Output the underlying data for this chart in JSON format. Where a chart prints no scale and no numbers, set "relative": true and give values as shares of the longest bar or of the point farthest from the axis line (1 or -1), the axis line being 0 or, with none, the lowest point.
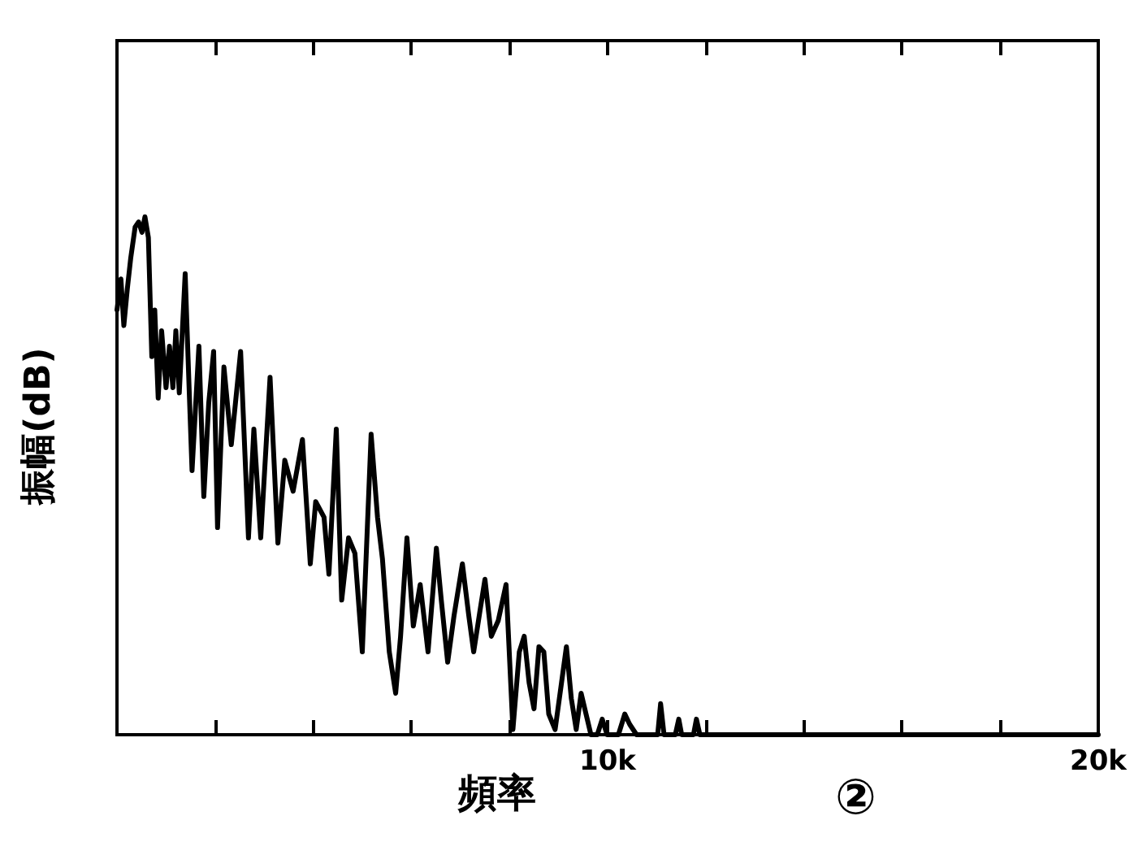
{
  "chart_data": {
    "type": "line",
    "xlabel": "頻率",
    "ylabel": "振幅(dB)",
    "annotations": [
      "②"
    ],
    "relative": true,
    "color": "#000000",
    "tick_labels": "x",
    "xlim": [
      0,
      20000
    ],
    "xticks": [
      {
        "value": 2000,
        "label": null
      },
      {
        "value": 4000,
        "label": null
      },
      {
        "value": 6000,
        "label": null
      },
      {
        "value": 8000,
        "label": null
      },
      {
        "value": 10000,
        "label": "10k"
      },
      {
        "value": 12000,
        "label": null
      },
      {
        "value": 14000,
        "label": null
      },
      {
        "value": 16000,
        "label": null
      },
      {
        "value": 18000,
        "label": null
      },
      {
        "value": 20000,
        "label": "20k"
      }
    ],
    "x": [
      0,
      80,
      140,
      210,
      280,
      370,
      440,
      510,
      570,
      640,
      710,
      770,
      840,
      910,
      1000,
      1070,
      1140,
      1200,
      1270,
      1390,
      1470,
      1530,
      1670,
      1770,
      1870,
      1970,
      2050,
      2180,
      2330,
      2520,
      2680,
      2790,
      2930,
      3120,
      3280,
      3420,
      3590,
      3780,
      3940,
      4050,
      4220,
      4320,
      4470,
      4580,
      4720,
      4850,
      5000,
      5180,
      5310,
      5410,
      5550,
      5680,
      5780,
      5910,
      6040,
      6180,
      6340,
      6510,
      6610,
      6740,
      6870,
      7040,
      7170,
      7270,
      7400,
      7500,
      7630,
      7770,
      7930,
      8070,
      8200,
      8300,
      8400,
      8500,
      8600,
      8700,
      8800,
      8930,
      9060,
      9160,
      9260,
      9360,
      9460,
      9560,
      9660,
      9790,
      9890,
      9990,
      10220,
      10350,
      10450,
      10590,
      11020,
      11080,
      11150,
      11380,
      11450,
      11510,
      11750,
      11810,
      11880,
      20000
    ],
    "values": [
      0.82,
      0.88,
      0.79,
      0.86,
      0.92,
      0.98,
      0.99,
      0.97,
      1.0,
      0.96,
      0.73,
      0.82,
      0.65,
      0.78,
      0.67,
      0.75,
      0.67,
      0.78,
      0.66,
      0.89,
      0.67,
      0.51,
      0.75,
      0.46,
      0.64,
      0.74,
      0.4,
      0.71,
      0.56,
      0.74,
      0.38,
      0.59,
      0.38,
      0.69,
      0.37,
      0.53,
      0.47,
      0.57,
      0.33,
      0.45,
      0.42,
      0.31,
      0.59,
      0.26,
      0.38,
      0.35,
      0.16,
      0.58,
      0.42,
      0.34,
      0.16,
      0.08,
      0.19,
      0.38,
      0.21,
      0.29,
      0.16,
      0.36,
      0.26,
      0.14,
      0.23,
      0.33,
      0.23,
      0.16,
      0.24,
      0.3,
      0.19,
      0.22,
      0.29,
      0.01,
      0.16,
      0.19,
      0.1,
      0.05,
      0.17,
      0.16,
      0.04,
      0.01,
      0.1,
      0.17,
      0.07,
      0.01,
      0.08,
      0.04,
      0,
      0,
      0.03,
      0,
      0,
      0.04,
      0.02,
      0,
      0,
      0.06,
      0,
      0,
      0.03,
      0,
      0,
      0.03,
      0,
      0
    ]
  }
}
